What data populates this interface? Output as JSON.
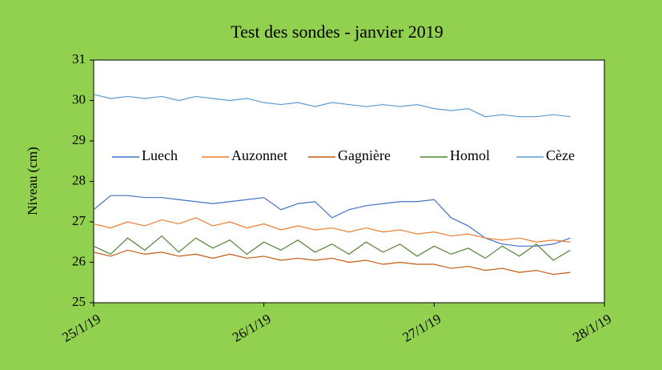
{
  "chart_data": {
    "type": "line",
    "title": "Test des sondes  - janvier 2019",
    "ylabel": "Niveau (cm)",
    "x": [
      0,
      0.1,
      0.2,
      0.3,
      0.4,
      0.5,
      0.6,
      0.7,
      0.8,
      0.9,
      1.0,
      1.1,
      1.2,
      1.3,
      1.4,
      1.5,
      1.6,
      1.7,
      1.8,
      1.9,
      2.0,
      2.1,
      2.2,
      2.3,
      2.4,
      2.5,
      2.6,
      2.7,
      2.8
    ],
    "series": [
      {
        "name": "Luech",
        "color": "#4472c4",
        "values": [
          27.3,
          27.65,
          27.65,
          27.6,
          27.6,
          27.55,
          27.5,
          27.45,
          27.5,
          27.55,
          27.6,
          27.3,
          27.45,
          27.5,
          27.1,
          27.3,
          27.4,
          27.45,
          27.5,
          27.5,
          27.55,
          27.1,
          26.9,
          26.6,
          26.45,
          26.4,
          26.4,
          26.45,
          26.6
        ]
      },
      {
        "name": "Auzonnet",
        "color": "#ed7d31",
        "values": [
          26.95,
          26.85,
          27.0,
          26.9,
          27.05,
          26.95,
          27.1,
          26.9,
          27.0,
          26.85,
          26.95,
          26.8,
          26.9,
          26.8,
          26.85,
          26.75,
          26.85,
          26.75,
          26.8,
          26.7,
          26.75,
          26.65,
          26.7,
          26.6,
          26.55,
          26.6,
          26.5,
          26.55,
          26.5
        ]
      },
      {
        "name": "Gagnière",
        "color": "#c55a11",
        "values": [
          26.25,
          26.15,
          26.3,
          26.2,
          26.25,
          26.15,
          26.2,
          26.1,
          26.2,
          26.1,
          26.15,
          26.05,
          26.1,
          26.05,
          26.1,
          26.0,
          26.05,
          25.95,
          26.0,
          25.95,
          25.95,
          25.85,
          25.9,
          25.8,
          25.85,
          25.75,
          25.8,
          25.7,
          25.75
        ]
      },
      {
        "name": "Homol",
        "color": "#548235",
        "values": [
          26.4,
          26.2,
          26.6,
          26.3,
          26.65,
          26.25,
          26.6,
          26.35,
          26.55,
          26.2,
          26.5,
          26.3,
          26.55,
          26.25,
          26.45,
          26.2,
          26.5,
          26.25,
          26.45,
          26.15,
          26.4,
          26.2,
          26.35,
          26.1,
          26.4,
          26.15,
          26.45,
          26.05,
          26.3
        ]
      },
      {
        "name": "Cèze",
        "color": "#5b9bd5",
        "values": [
          30.15,
          30.05,
          30.1,
          30.05,
          30.1,
          30.0,
          30.1,
          30.05,
          30.0,
          30.05,
          29.95,
          29.9,
          29.95,
          29.85,
          29.95,
          29.9,
          29.85,
          29.9,
          29.85,
          29.9,
          29.8,
          29.75,
          29.8,
          29.6,
          29.65,
          29.6,
          29.6,
          29.65,
          29.6
        ]
      }
    ],
    "xlim": [
      0,
      3
    ],
    "xticks": [
      {
        "value": 0,
        "label": "25/1/19"
      },
      {
        "value": 1,
        "label": "26/1/19"
      },
      {
        "value": 2,
        "label": "27/1/19"
      },
      {
        "value": 3,
        "label": "28/1/19"
      }
    ],
    "ylim": [
      25,
      31
    ],
    "yticks": [
      25,
      26,
      27,
      28,
      29,
      30,
      31
    ],
    "legend": "inside-middle"
  }
}
